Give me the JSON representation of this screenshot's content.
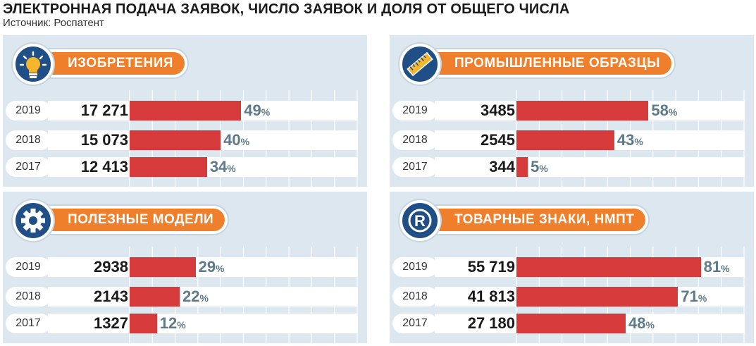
{
  "title": "ЭЛЕКТРОННАЯ ПОДАЧА ЗАЯВОК, ЧИСЛО ЗАЯВОК И ДОЛЯ ОТ ОБЩЕГО ЧИСЛА",
  "source": "Источник: Роспатент",
  "colors": {
    "bar": "#d63a3a",
    "header_pill": "#f07f2c",
    "badge": "#1f4f86",
    "panel_bg": "#dde7f0",
    "percent_text": "#5d7a8a"
  },
  "chart_data": [
    {
      "type": "bar",
      "title": "ИЗОБРЕТЕНИЯ",
      "icon": "lightbulb-icon",
      "categories": [
        "2019",
        "2018",
        "2017"
      ],
      "values": [
        17271,
        15073,
        12413
      ],
      "value_labels": [
        "17 271",
        "15 073",
        "12 413"
      ],
      "percent": [
        49,
        40,
        34
      ],
      "xlim": [
        0,
        100
      ]
    },
    {
      "type": "bar",
      "title": "ПРОМЫШЛЕННЫЕ ОБРАЗЦЫ",
      "icon": "ruler-icon",
      "categories": [
        "2019",
        "2018",
        "2017"
      ],
      "values": [
        3485,
        2545,
        344
      ],
      "value_labels": [
        "3485",
        "2545",
        "344"
      ],
      "percent": [
        58,
        43,
        5
      ],
      "xlim": [
        0,
        100
      ]
    },
    {
      "type": "bar",
      "title": "ПОЛЕЗНЫЕ МОДЕЛИ",
      "icon": "gear-icon",
      "categories": [
        "2019",
        "2018",
        "2017"
      ],
      "values": [
        2938,
        2143,
        1327
      ],
      "value_labels": [
        "2938",
        "2143",
        "1327"
      ],
      "percent": [
        29,
        22,
        12
      ],
      "xlim": [
        0,
        100
      ]
    },
    {
      "type": "bar",
      "title": "ТОВАРНЫЕ ЗНАКИ, НМПТ",
      "icon": "registered-trademark-icon",
      "categories": [
        "2019",
        "2018",
        "2017"
      ],
      "values": [
        55719,
        41813,
        27180
      ],
      "value_labels": [
        "55 719",
        "41 813",
        "27 180"
      ],
      "percent": [
        81,
        71,
        48
      ],
      "xlim": [
        0,
        100
      ]
    }
  ]
}
